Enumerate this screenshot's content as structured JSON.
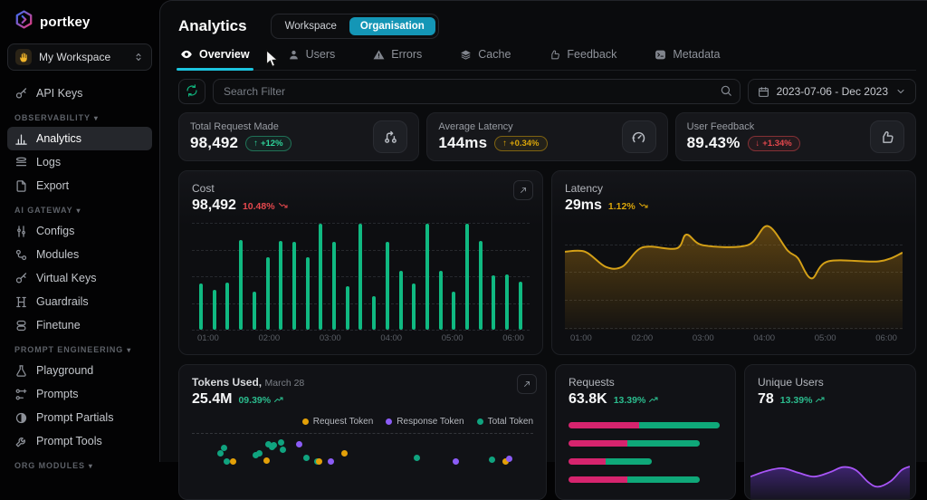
{
  "app": {
    "logo_text": "portkey"
  },
  "icons": {
    "caret_down": "▾",
    "arrow_up": "↑",
    "arrow_down": "↓"
  },
  "sidebar": {
    "workspace_selector": {
      "label": "My Workspace",
      "icon": "waving-hand"
    },
    "sections": [
      {
        "label": "OBSERVABILITY"
      },
      {
        "label": "AI GATEWAY"
      },
      {
        "label": "PROMPT ENGINEERING"
      },
      {
        "label": "ORG MODULES"
      }
    ],
    "items": [
      {
        "label": "API Keys"
      },
      {
        "label": "Analytics",
        "active": true
      },
      {
        "label": "Logs"
      },
      {
        "label": "Export"
      },
      {
        "label": "Configs"
      },
      {
        "label": "Modules"
      },
      {
        "label": "Virtual Keys"
      },
      {
        "label": "Guardrails"
      },
      {
        "label": "Finetune"
      },
      {
        "label": "Playground"
      },
      {
        "label": "Prompts"
      },
      {
        "label": "Prompt Partials"
      },
      {
        "label": "Prompt Tools"
      }
    ]
  },
  "header": {
    "title": "Analytics",
    "scope_toggle": {
      "options": [
        "Workspace",
        "Organisation"
      ],
      "selected": "Organisation"
    }
  },
  "tabs": [
    {
      "label": "Overview",
      "active": true
    },
    {
      "label": "Users"
    },
    {
      "label": "Errors"
    },
    {
      "label": "Cache"
    },
    {
      "label": "Feedback"
    },
    {
      "label": "Metadata"
    }
  ],
  "filters": {
    "search_placeholder": "Search Filter",
    "date_range": "2023-07-06 - Dec 2023"
  },
  "stats": [
    {
      "label": "Total Request Made",
      "value": "98,492",
      "arrow": "↑",
      "delta": "+12%",
      "tone": "green",
      "icon": "git-branch"
    },
    {
      "label": "Average Latency",
      "value": "144ms",
      "arrow": "↑",
      "delta": "+0.34%",
      "tone": "yellow",
      "icon": "gauge"
    },
    {
      "label": "User Feedback",
      "value": "89.43%",
      "arrow": "↓",
      "delta": "+1.34%",
      "tone": "red",
      "icon": "thumbs-up"
    }
  ],
  "cards": {
    "cost": {
      "title": "Cost",
      "value": "98,492",
      "delta": "10.48%",
      "trend": "down"
    },
    "latency": {
      "title": "Latency",
      "value": "29ms",
      "delta": "1.12%",
      "trend": "down"
    },
    "tokens": {
      "title": "Tokens Used,",
      "subtitle": "March 28",
      "value": "25.4M",
      "delta": "09.39%",
      "trend": "up",
      "legend": [
        {
          "label": "Request Token",
          "color": "#e3a008"
        },
        {
          "label": "Response Token",
          "color": "#8b5cf6"
        },
        {
          "label": "Total Token",
          "color": "#10a37f"
        }
      ]
    },
    "requests": {
      "title": "Requests",
      "value": "63.8K",
      "delta": "13.39%",
      "trend": "up"
    },
    "unique_users": {
      "title": "Unique Users",
      "value": "78",
      "delta": "13.39%",
      "trend": "up"
    }
  },
  "chart_data": [
    {
      "id": "cost",
      "type": "bar",
      "title": "Cost",
      "x_ticks": [
        "01:00",
        "02:00",
        "03:00",
        "04:00",
        "05:00",
        "06:00"
      ],
      "values": [
        43,
        37,
        44,
        84,
        36,
        68,
        83,
        82,
        68,
        99,
        82,
        41,
        99,
        31,
        82,
        55,
        43,
        99,
        55,
        36,
        99,
        83,
        51,
        52,
        45
      ],
      "ylim": [
        0,
        100
      ],
      "color": "#10b981",
      "grid": true
    },
    {
      "id": "latency",
      "type": "area",
      "title": "Latency",
      "x_ticks": [
        "01:00",
        "02:00",
        "03:00",
        "04:00",
        "05:00",
        "06:00"
      ],
      "points": [
        [
          0,
          0.73
        ],
        [
          0.06,
          0.73
        ],
        [
          0.12,
          0.59
        ],
        [
          0.17,
          0.59
        ],
        [
          0.23,
          0.77
        ],
        [
          0.33,
          0.76
        ],
        [
          0.36,
          0.89
        ],
        [
          0.41,
          0.79
        ],
        [
          0.54,
          0.79
        ],
        [
          0.6,
          0.97
        ],
        [
          0.66,
          0.74
        ],
        [
          0.69,
          0.67
        ],
        [
          0.73,
          0.48
        ],
        [
          0.78,
          0.64
        ],
        [
          0.93,
          0.64
        ],
        [
          1,
          0.72
        ]
      ],
      "color": "#d4a017",
      "grid": true
    },
    {
      "id": "tokens",
      "type": "scatter",
      "title": "Tokens Used",
      "series_colors": {
        "request": "#e3a008",
        "response": "#8b5cf6",
        "total": "#10a37f"
      },
      "points": [
        {
          "x": 7.4,
          "y": 18,
          "s": "total"
        },
        {
          "x": 8.4,
          "y": 12,
          "s": "total"
        },
        {
          "x": 9.4,
          "y": 27,
          "s": "total"
        },
        {
          "x": 17.8,
          "y": 20,
          "s": "total"
        },
        {
          "x": 18.8,
          "y": 18,
          "s": "total"
        },
        {
          "x": 21.5,
          "y": 8,
          "s": "total"
        },
        {
          "x": 22.5,
          "y": 11,
          "s": "total"
        },
        {
          "x": 23.2,
          "y": 9,
          "s": "total"
        },
        {
          "x": 25.2,
          "y": 6,
          "s": "total"
        },
        {
          "x": 25.6,
          "y": 14,
          "s": "total"
        },
        {
          "x": 32.6,
          "y": 23,
          "s": "total"
        },
        {
          "x": 35.8,
          "y": 27,
          "s": "total"
        },
        {
          "x": 64.9,
          "y": 23,
          "s": "total"
        },
        {
          "x": 86.9,
          "y": 25,
          "s": "total"
        },
        {
          "x": 11.1,
          "y": 27,
          "s": "request"
        },
        {
          "x": 21,
          "y": 26,
          "s": "request"
        },
        {
          "x": 36.3,
          "y": 27,
          "s": "request"
        },
        {
          "x": 43.7,
          "y": 18,
          "s": "request"
        },
        {
          "x": 90.9,
          "y": 27,
          "s": "request"
        },
        {
          "x": 30.6,
          "y": 8,
          "s": "response"
        },
        {
          "x": 39.8,
          "y": 27,
          "s": "response"
        },
        {
          "x": 76.5,
          "y": 27,
          "s": "response"
        },
        {
          "x": 92.1,
          "y": 24,
          "s": "response"
        }
      ]
    },
    {
      "id": "requests",
      "type": "hbar",
      "title": "Requests",
      "colors": [
        "#d6246e",
        "#0fa879"
      ],
      "rows": [
        [
          46,
          98
        ],
        [
          38,
          85
        ],
        [
          24,
          54
        ],
        [
          38,
          85
        ]
      ]
    },
    {
      "id": "unique_users",
      "type": "area",
      "title": "Unique Users",
      "color": "#a855f7",
      "points": [
        [
          0,
          0.4
        ],
        [
          0.1,
          0.5
        ],
        [
          0.2,
          0.55
        ],
        [
          0.3,
          0.47
        ],
        [
          0.4,
          0.4
        ],
        [
          0.5,
          0.48
        ],
        [
          0.58,
          0.57
        ],
        [
          0.66,
          0.52
        ],
        [
          0.74,
          0.3
        ],
        [
          0.8,
          0.22
        ],
        [
          0.88,
          0.32
        ],
        [
          0.95,
          0.52
        ],
        [
          1,
          0.58
        ]
      ]
    }
  ]
}
